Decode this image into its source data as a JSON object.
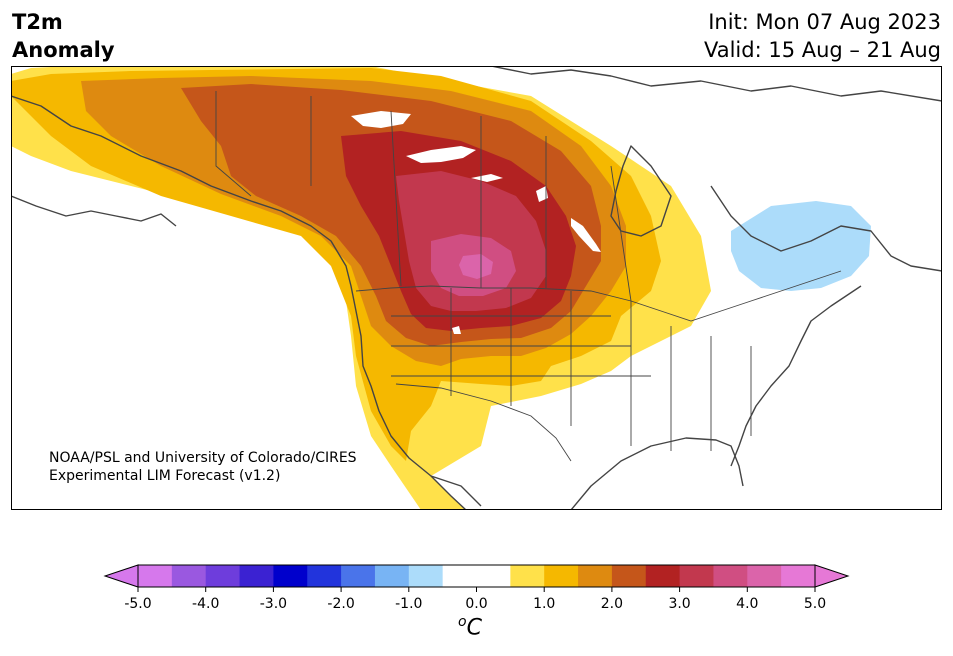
{
  "title": {
    "left_line1": "T2m",
    "left_line2": "Anomaly",
    "init": "Init: Mon 07 Aug 2023",
    "valid": "Valid: 15 Aug – 21 Aug"
  },
  "credit": {
    "line1": "NOAA/PSL and University of Colorado/CIRES",
    "line2": "Experimental LIM Forecast (v1.2)"
  },
  "colorbar": {
    "unit_sup": "o",
    "unit": "C",
    "tick_labels": [
      "-5.0",
      "-4.0",
      "-3.0",
      "-2.0",
      "-1.0",
      "0.0",
      "1.0",
      "2.0",
      "3.0",
      "4.0",
      "5.0"
    ],
    "colors": [
      "#d678ec",
      "#9a58e0",
      "#6e3ddc",
      "#3b22d2",
      "#0000cc",
      "#2234dc",
      "#4a74ea",
      "#78b4f4",
      "#acdcfa",
      "#ffffff",
      "#ffffff",
      "#ffe14a",
      "#f5b800",
      "#de8a10",
      "#c5561a",
      "#b22222",
      "#c2384e",
      "#d04e82",
      "#db64aa",
      "#e678d6"
    ],
    "under_color": "#d678ec",
    "over_color": "#e678d6"
  },
  "map": {
    "region": "North America",
    "colors": {
      "land_outline": "#444444",
      "heat_levels": [
        "#ffe14a",
        "#f5b800",
        "#de8a10",
        "#c5561a",
        "#b22222",
        "#c2384e",
        "#d04e82",
        "#db64aa"
      ],
      "cool_anomaly": "#acdcfa"
    }
  }
}
